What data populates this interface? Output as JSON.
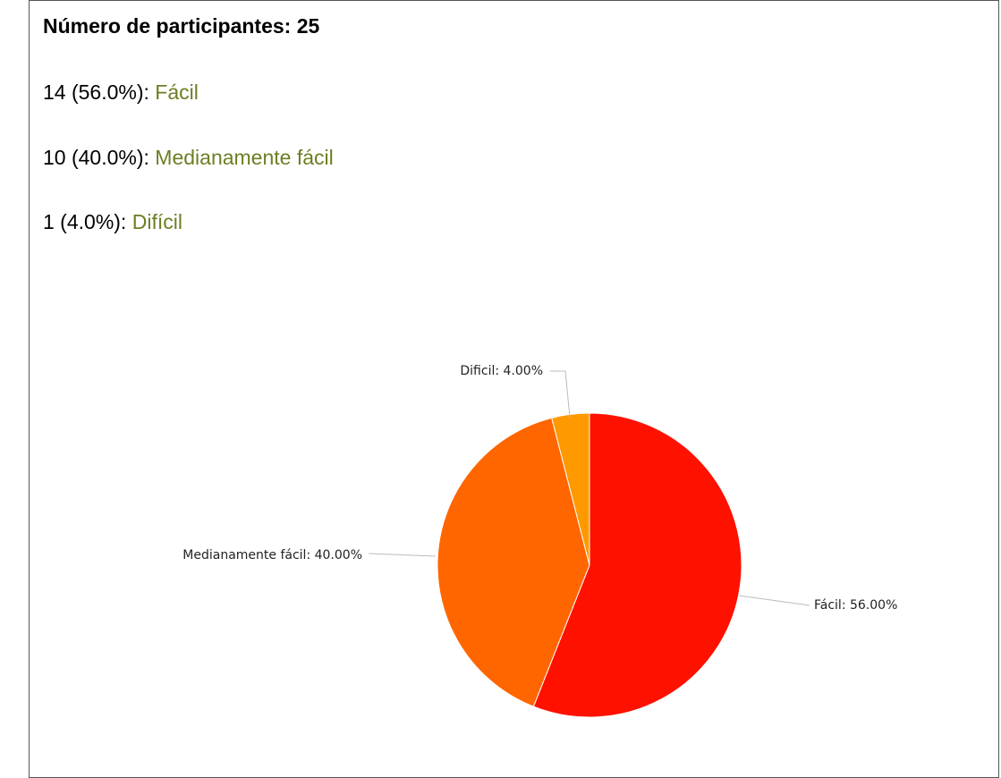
{
  "header": "Número de participantes: 25",
  "summary": [
    {
      "text": "14 (56.0%):",
      "answer": "Fácil"
    },
    {
      "text": "10 (40.0%):",
      "answer": "Medianamente fácil"
    },
    {
      "text": "1 (4.0%):",
      "answer": "Difícil"
    }
  ],
  "chart_data": {
    "type": "pie",
    "values": [
      56,
      40,
      4
    ],
    "value_labels": [
      "Fácil: 56.00%",
      "Medianamente fácil: 40.00%",
      "Dificil: 4.00%"
    ],
    "colors": [
      "#ff1100",
      "#ff6600",
      "#ff9900"
    ]
  }
}
